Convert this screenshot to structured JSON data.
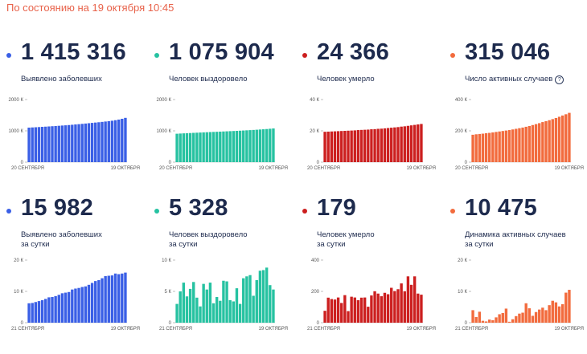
{
  "header": {
    "text": "По состоянию на 19 октября 10:45"
  },
  "cards": [
    {
      "value": "1 415 316",
      "label": [
        "Выявлено заболевших"
      ],
      "help": false,
      "color": "#3a5fe6"
    },
    {
      "value": "1 075 904",
      "label": [
        "Человек выздоровело"
      ],
      "help": false,
      "color": "#26c2a1"
    },
    {
      "value": "24 366",
      "label": [
        "Человек умерло"
      ],
      "help": false,
      "color": "#cc1f1f"
    },
    {
      "value": "315 046",
      "label": [
        "Число активных случаев"
      ],
      "help": true,
      "help_icon": "question-icon",
      "color": "#f26b3d"
    },
    {
      "value": "15 982",
      "label": [
        "Выявлено заболевших",
        "за сутки"
      ],
      "help": false,
      "color": "#3a5fe6"
    },
    {
      "value": "5 328",
      "label": [
        "Человек выздоровело",
        "за сутки"
      ],
      "help": false,
      "color": "#26c2a1"
    },
    {
      "value": "179",
      "label": [
        "Человек умерло",
        "за сутки"
      ],
      "help": false,
      "color": "#cc1f1f"
    },
    {
      "value": "10 475",
      "label": [
        "Динамика активных случаев",
        "за сутки"
      ],
      "help": false,
      "color": "#f26b3d"
    }
  ],
  "chart_data": [
    {
      "type": "bar",
      "x_start": "20 СЕНТЯБРЯ",
      "x_end": "19 ОКТЯБРЯ",
      "y_ticks": [
        "0",
        "1000 К",
        "2000 К"
      ],
      "ylim": [
        0,
        2000
      ],
      "color": "#3a5fe6",
      "values": [
        1103,
        1109,
        1115,
        1121,
        1128,
        1134,
        1141,
        1148,
        1155,
        1162,
        1170,
        1177,
        1185,
        1194,
        1204,
        1213,
        1223,
        1233,
        1244,
        1255,
        1265,
        1275,
        1286,
        1298,
        1310,
        1323,
        1340,
        1360,
        1385,
        1415
      ]
    },
    {
      "type": "bar",
      "x_start": "20 СЕНТЯБРЯ",
      "x_end": "19 ОКТЯБРЯ",
      "y_ticks": [
        "0",
        "1000 К",
        "2000 К"
      ],
      "ylim": [
        0,
        2000
      ],
      "color": "#26c2a1",
      "values": [
        908,
        914,
        920,
        925,
        930,
        936,
        941,
        946,
        951,
        956,
        961,
        966,
        970,
        975,
        980,
        985,
        990,
        995,
        1000,
        1005,
        1011,
        1017,
        1023,
        1029,
        1036,
        1043,
        1050,
        1058,
        1067,
        1076
      ]
    },
    {
      "type": "bar",
      "x_start": "20 СЕНТЯБРЯ",
      "x_end": "19 ОКТЯБРЯ",
      "y_ticks": [
        "0",
        "20 К",
        "40 К"
      ],
      "ylim": [
        0,
        40
      ],
      "color": "#cc1f1f",
      "values": [
        19.4,
        19.5,
        19.6,
        19.7,
        19.8,
        19.9,
        20.0,
        20.1,
        20.2,
        20.3,
        20.5,
        20.6,
        20.7,
        20.8,
        21.0,
        21.1,
        21.3,
        21.4,
        21.6,
        21.8,
        22.0,
        22.2,
        22.4,
        22.7,
        22.9,
        23.2,
        23.5,
        23.8,
        24.1,
        24.4
      ]
    },
    {
      "type": "bar",
      "x_start": "20 СЕНТЯБРЯ",
      "x_end": "19 ОКТЯБРЯ",
      "y_ticks": [
        "0",
        "200 К",
        "400 К"
      ],
      "ylim": [
        0,
        400
      ],
      "color": "#f26b3d",
      "values": [
        175,
        178,
        180,
        182,
        185,
        187,
        190,
        193,
        196,
        199,
        202,
        205,
        209,
        213,
        217,
        221,
        226,
        231,
        237,
        243,
        249,
        256,
        262,
        268,
        275,
        282,
        290,
        298,
        306,
        315
      ]
    },
    {
      "type": "bar",
      "x_start": "21 СЕНТЯБРЯ",
      "x_end": "19 ОКТЯБРЯ",
      "y_ticks": [
        "0",
        "10 К",
        "20 К"
      ],
      "ylim": [
        0,
        20
      ],
      "color": "#3a5fe6",
      "values": [
        6.2,
        6.3,
        6.6,
        6.9,
        7.2,
        7.6,
        8.1,
        8.2,
        8.5,
        8.9,
        9.4,
        9.6,
        9.8,
        10.6,
        10.9,
        11.1,
        11.4,
        11.6,
        12.1,
        12.7,
        13.3,
        13.6,
        14.2,
        14.9,
        15.0,
        15.1,
        15.7,
        15.5,
        15.7,
        16.0
      ]
    },
    {
      "type": "bar",
      "x_start": "21 СЕНТЯБРЯ",
      "x_end": "19 ОКТЯБРЯ",
      "y_ticks": [
        "0",
        "5 К",
        "10 К"
      ],
      "ylim": [
        0,
        10
      ],
      "color": "#26c2a1",
      "values": [
        3.0,
        5.0,
        6.4,
        4.2,
        5.4,
        6.5,
        4.0,
        2.6,
        6.2,
        5.3,
        6.4,
        3.1,
        4.1,
        3.5,
        6.7,
        6.6,
        3.6,
        3.4,
        5.5,
        3.0,
        7.1,
        7.4,
        7.6,
        4.3,
        6.8,
        8.3,
        8.4,
        8.8,
        6.0,
        5.3
      ]
    },
    {
      "type": "bar",
      "x_start": "21 СЕНТЯБРЯ",
      "x_end": "19 ОКТЯБРЯ",
      "y_ticks": [
        "0",
        "200",
        "400"
      ],
      "ylim": [
        0,
        400
      ],
      "color": "#cc1f1f",
      "values": [
        76,
        160,
        151,
        148,
        161,
        126,
        176,
        74,
        166,
        161,
        144,
        160,
        161,
        102,
        174,
        201,
        186,
        169,
        191,
        182,
        223,
        202,
        214,
        251,
        201,
        296,
        242,
        296,
        186,
        179
      ]
    },
    {
      "type": "bar",
      "x_start": "21 СЕНТЯБРЯ",
      "x_end": "19 ОКТЯБРЯ",
      "y_ticks": [
        "0",
        "10 К",
        "20 К"
      ],
      "ylim": [
        0,
        20
      ],
      "color": "#f26b3d",
      "values": [
        4.0,
        1.8,
        3.5,
        0.6,
        0.4,
        1.0,
        0.8,
        1.7,
        2.7,
        3.1,
        4.5,
        0.3,
        1.1,
        2.1,
        2.9,
        3.2,
        6.2,
        4.6,
        2.2,
        3.4,
        4.2,
        4.8,
        4.0,
        5.6,
        7.0,
        6.5,
        5.2,
        5.9,
        9.6,
        10.5
      ]
    }
  ]
}
